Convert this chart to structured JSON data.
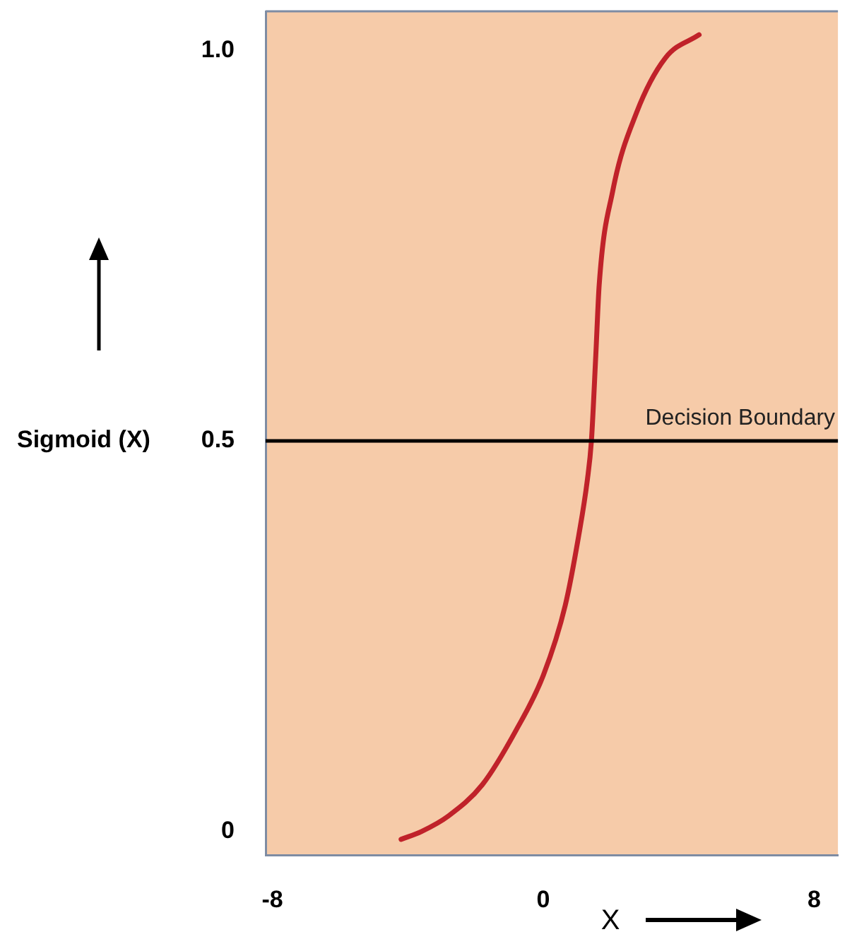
{
  "chart_data": {
    "type": "line",
    "xlabel": "X",
    "ylabel": "Sigmoid (X)",
    "xlim": [
      -8.2,
      8.7
    ],
    "ylim": [
      -0.03,
      1.05
    ],
    "xticks": [
      -8,
      0,
      8
    ],
    "yticks": [
      0,
      0.5,
      {
        "value": 1,
        "label": "1.0"
      }
    ],
    "grid": false,
    "legend": false,
    "marker": "none",
    "line_style": "solid",
    "series": [
      {
        "color": "#c0222a",
        "x": [
          -4.2,
          -3.6,
          -2.8,
          -1.8,
          -0.8,
          0,
          0.65,
          1.05,
          1.3,
          1.42,
          1.55,
          1.65,
          2.05,
          2.75,
          3.6,
          4.6
        ],
        "values": [
          -0.01,
          0,
          0.02,
          0.06,
          0.13,
          0.2,
          0.29,
          0.38,
          0.45,
          0.5,
          0.61,
          0.7,
          0.82,
          0.92,
          0.99,
          1.02
        ]
      }
    ],
    "ref_lines": [
      {
        "axis": "y",
        "value": 0.5,
        "label": "Decision Boundary",
        "color": "#000000",
        "line_style": "solid"
      }
    ]
  }
}
